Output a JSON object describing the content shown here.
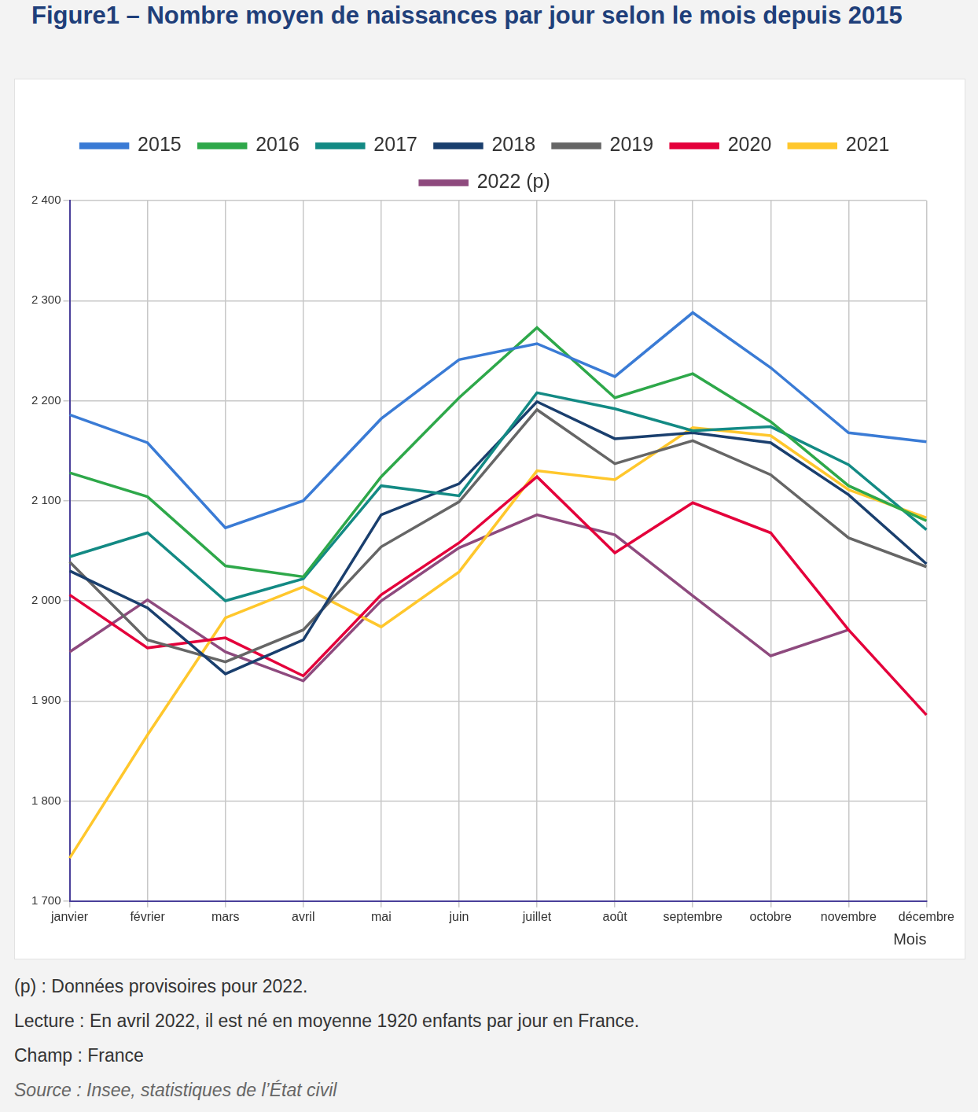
{
  "chart_data": {
    "type": "line",
    "title": "Figure1 – Nombre moyen de naissances par jour selon le mois depuis 2015",
    "x_label": "Mois",
    "categories": [
      "janvier",
      "février",
      "mars",
      "avril",
      "mai",
      "juin",
      "juillet",
      "août",
      "septembre",
      "octobre",
      "novembre",
      "décembre"
    ],
    "series": [
      {
        "name": "2015",
        "color": "#3a7bd5",
        "values": [
          2186,
          2158,
          2073,
          2100,
          2182,
          2241,
          2257,
          2224,
          2288,
          2233,
          2168,
          2159
        ]
      },
      {
        "name": "2016",
        "color": "#2ea84a",
        "values": [
          2128,
          2104,
          2035,
          2024,
          2124,
          2203,
          2273,
          2203,
          2227,
          2179,
          2115,
          2080
        ]
      },
      {
        "name": "2017",
        "color": "#138a84",
        "values": [
          2044,
          2068,
          2000,
          2022,
          2115,
          2105,
          2208,
          2192,
          2170,
          2174,
          2136,
          2071
        ]
      },
      {
        "name": "2018",
        "color": "#1a3f6e",
        "values": [
          2030,
          1993,
          1927,
          1961,
          2086,
          2117,
          2199,
          2162,
          2168,
          2158,
          2106,
          2037
        ]
      },
      {
        "name": "2019",
        "color": "#666666",
        "values": [
          2039,
          1961,
          1939,
          1971,
          2054,
          2099,
          2191,
          2137,
          2160,
          2126,
          2063,
          2034
        ]
      },
      {
        "name": "2020",
        "color": "#e4003b",
        "values": [
          2006,
          1953,
          1963,
          1925,
          2006,
          2058,
          2124,
          2048,
          2098,
          2068,
          1971,
          1886
        ]
      },
      {
        "name": "2021",
        "color": "#ffc72c",
        "values": [
          1743,
          1866,
          1983,
          2014,
          1974,
          2029,
          2130,
          2121,
          2173,
          2165,
          2111,
          2083
        ]
      },
      {
        "name": "2022 (p)",
        "color": "#8e4a7e",
        "values": [
          1949,
          2001,
          1949,
          1920,
          2000,
          2053,
          2086,
          2066,
          2005,
          1945,
          1971,
          null
        ]
      }
    ],
    "ylim": [
      1700,
      2400
    ],
    "yticks": [
      {
        "value": 1700,
        "label": "1 700"
      },
      {
        "value": 1800,
        "label": "1 800"
      },
      {
        "value": 1900,
        "label": "1 900"
      },
      {
        "value": 2000,
        "label": "2 000"
      },
      {
        "value": 2100,
        "label": "2 100"
      },
      {
        "value": 2200,
        "label": "2 200"
      },
      {
        "value": 2300,
        "label": "2 300"
      },
      {
        "value": 2400,
        "label": "2 400"
      }
    ],
    "grid": true,
    "legend": "top",
    "notes": [
      "(p) : Données provisoires pour 2022.",
      "Lecture : En avril 2022, il est né en moyenne 1920 enfants par jour en France.",
      "Champ : France"
    ],
    "source": "Source : Insee, statistiques de l’État civil"
  }
}
